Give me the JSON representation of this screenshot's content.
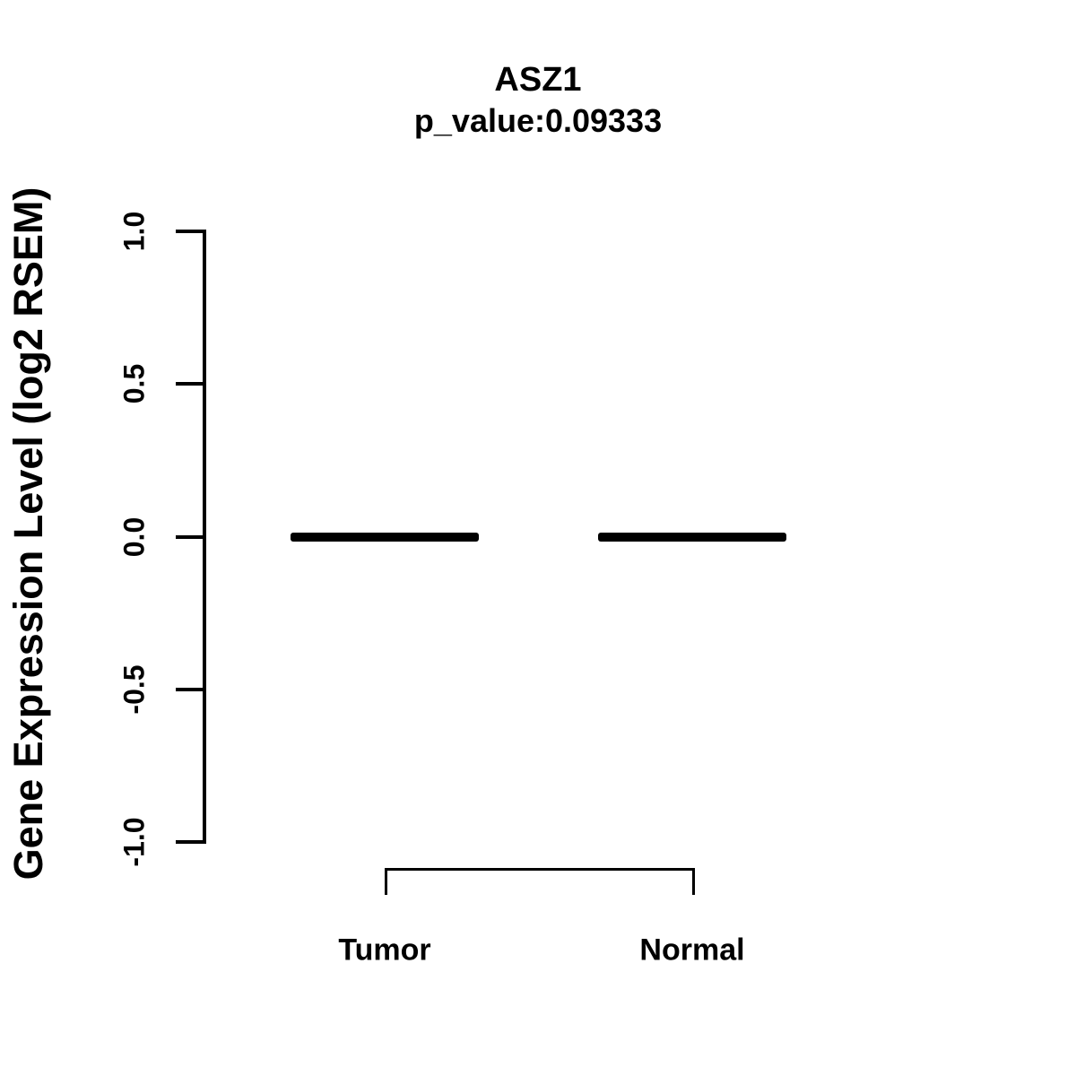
{
  "title": "ASZ1",
  "subtitle": "p_value:0.09333",
  "chart_data": {
    "type": "boxplot",
    "categories": [
      "Tumor",
      "Normal"
    ],
    "series": [
      {
        "name": "Tumor",
        "median": 0.0,
        "q1": 0.0,
        "q3": 0.0,
        "whisker_low": 0.0,
        "whisker_high": 0.0
      },
      {
        "name": "Normal",
        "median": 0.0,
        "q1": 0.0,
        "q3": 0.0,
        "whisker_low": 0.0,
        "whisker_high": 0.0
      }
    ],
    "title": "ASZ1",
    "subtitle": "p_value:0.09333",
    "xlabel": "",
    "ylabel": "Gene Expression Level (log2 RSEM)",
    "ylim": [
      -1.0,
      1.0
    ],
    "yticks": [
      1.0,
      0.5,
      0.0,
      -0.5,
      -1.0
    ],
    "ytick_labels": [
      "1.0",
      "0.5",
      "0.0",
      "-0.5",
      "-1.0"
    ],
    "grid": false,
    "legend": false
  },
  "comparison_bracket": {
    "between": [
      "Tumor",
      "Normal"
    ]
  },
  "colors": {
    "foreground": "#000000",
    "background": "#ffffff"
  }
}
